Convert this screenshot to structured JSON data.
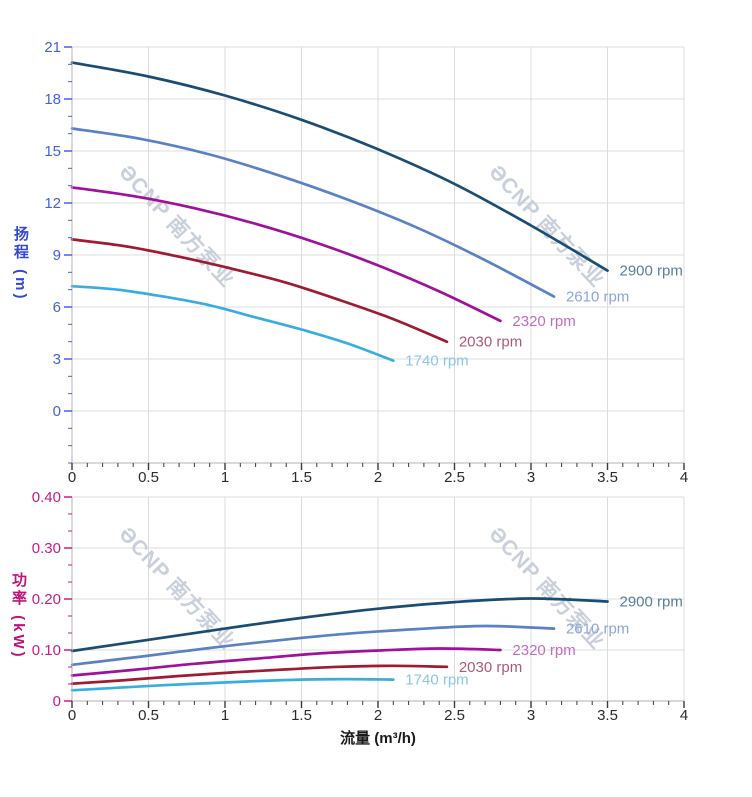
{
  "palette": {
    "grid_color": "#dcdcdf",
    "axis_line_color": "#b3b3b8",
    "x_tick_color": "#3a3a3a",
    "x_label_color": "#2b2b2b",
    "x_title_color": "#1a1a1a",
    "watermark_color": "#c9cfdb"
  },
  "watermark": {
    "text": "ƏCNP 南方泵业"
  },
  "flow_axis_title": "流量 (m³/h)",
  "chart_data": [
    {
      "type": "line",
      "name": "head-vs-flow",
      "title": "",
      "xlabel": "",
      "ylabel": "扬程 (m)",
      "xlim": [
        0,
        4
      ],
      "ylim": [
        -3,
        21
      ],
      "grid": true,
      "legend_position": "end-of-curve",
      "axis_color_y": "#4462de",
      "title_color": "#3448d2",
      "y_minor_per_major": 3,
      "x_minor_per_major": 5,
      "x_ticks": [
        {
          "value": 0,
          "label": "0"
        },
        {
          "value": 0.5,
          "label": "0.5"
        },
        {
          "value": 1,
          "label": "1"
        },
        {
          "value": 1.5,
          "label": "1.5"
        },
        {
          "value": 2,
          "label": "2"
        },
        {
          "value": 2.5,
          "label": "2.5"
        },
        {
          "value": 3,
          "label": "3"
        },
        {
          "value": 3.5,
          "label": "3.5"
        },
        {
          "value": 4,
          "label": "4"
        }
      ],
      "y_ticks": [
        {
          "value": 0,
          "label": "0"
        },
        {
          "value": 3,
          "label": "3"
        },
        {
          "value": 6,
          "label": "6"
        },
        {
          "value": 9,
          "label": "9"
        },
        {
          "value": 12,
          "label": "12"
        },
        {
          "value": 15,
          "label": "15"
        },
        {
          "value": 18,
          "label": "18"
        },
        {
          "value": 21,
          "label": "21"
        }
      ],
      "series": [
        {
          "name": "2900 rpm",
          "color": "#1b4d74",
          "label_color": "#587f9f",
          "points": [
            [
              0,
              20.1
            ],
            [
              0.5,
              19.3
            ],
            [
              1,
              18.2
            ],
            [
              1.5,
              16.8
            ],
            [
              2,
              15.1
            ],
            [
              2.5,
              13.1
            ],
            [
              3,
              10.7
            ],
            [
              3.5,
              8.1
            ]
          ]
        },
        {
          "name": "2610 rpm",
          "color": "#5a81c4",
          "label_color": "#8ba6d9",
          "points": [
            [
              0,
              16.3
            ],
            [
              0.45,
              15.7
            ],
            [
              0.9,
              14.8
            ],
            [
              1.35,
              13.6
            ],
            [
              1.8,
              12.2
            ],
            [
              2.25,
              10.6
            ],
            [
              2.7,
              8.7
            ],
            [
              3.15,
              6.6
            ]
          ]
        },
        {
          "name": "2320 rpm",
          "color": "#9e119b",
          "label_color": "#bf6ebe",
          "points": [
            [
              0,
              12.9
            ],
            [
              0.4,
              12.4
            ],
            [
              0.8,
              11.7
            ],
            [
              1.2,
              10.8
            ],
            [
              1.6,
              9.7
            ],
            [
              2,
              8.4
            ],
            [
              2.4,
              6.9
            ],
            [
              2.8,
              5.2
            ]
          ]
        },
        {
          "name": "2030 rpm",
          "color": "#9e1b33",
          "label_color": "#ad5a78",
          "points": [
            [
              0,
              9.9
            ],
            [
              0.35,
              9.5
            ],
            [
              0.7,
              8.9
            ],
            [
              1.05,
              8.2
            ],
            [
              1.4,
              7.4
            ],
            [
              1.75,
              6.4
            ],
            [
              2.1,
              5.3
            ],
            [
              2.45,
              4.0
            ]
          ]
        },
        {
          "name": "1740 rpm",
          "color": "#3aade0",
          "label_color": "#8ac5ea",
          "points": [
            [
              0,
              7.2
            ],
            [
              0.3,
              7.0
            ],
            [
              0.6,
              6.6
            ],
            [
              0.9,
              6.1
            ],
            [
              1.2,
              5.4
            ],
            [
              1.5,
              4.7
            ],
            [
              1.8,
              3.9
            ],
            [
              2.1,
              2.9
            ]
          ]
        }
      ]
    },
    {
      "type": "line",
      "name": "power-vs-flow",
      "title": "",
      "xlabel": "流量 (m³/h)",
      "ylabel": "功率 (kW)",
      "xlim": [
        0,
        4
      ],
      "ylim": [
        0,
        0.4
      ],
      "grid": true,
      "legend_position": "end-of-curve",
      "axis_color_y": "#c51d87",
      "title_color": "#bd1478",
      "y_minor_per_major": 3,
      "x_minor_per_major": 5,
      "x_ticks": [
        {
          "value": 0,
          "label": "0"
        },
        {
          "value": 0.5,
          "label": "0.5"
        },
        {
          "value": 1,
          "label": "1"
        },
        {
          "value": 1.5,
          "label": "1.5"
        },
        {
          "value": 2,
          "label": "2"
        },
        {
          "value": 2.5,
          "label": "2.5"
        },
        {
          "value": 3,
          "label": "3"
        },
        {
          "value": 3.5,
          "label": "3.5"
        },
        {
          "value": 4,
          "label": "4"
        }
      ],
      "y_ticks": [
        {
          "value": 0,
          "label": "0"
        },
        {
          "value": 0.1,
          "label": "0.10"
        },
        {
          "value": 0.2,
          "label": "0.20"
        },
        {
          "value": 0.3,
          "label": "0.30"
        },
        {
          "value": 0.4,
          "label": "0.40"
        }
      ],
      "series": [
        {
          "name": "2900 rpm",
          "color": "#1b4d74",
          "label_color": "#587f9f",
          "points": [
            [
              0,
              0.098
            ],
            [
              0.5,
              0.12
            ],
            [
              1,
              0.142
            ],
            [
              1.5,
              0.163
            ],
            [
              2,
              0.181
            ],
            [
              2.5,
              0.194
            ],
            [
              3,
              0.201
            ],
            [
              3.5,
              0.195
            ]
          ]
        },
        {
          "name": "2610 rpm",
          "color": "#5a81c4",
          "label_color": "#8ba6d9",
          "points": [
            [
              0,
              0.071
            ],
            [
              0.45,
              0.087
            ],
            [
              0.9,
              0.104
            ],
            [
              1.35,
              0.119
            ],
            [
              1.8,
              0.132
            ],
            [
              2.25,
              0.141
            ],
            [
              2.7,
              0.147
            ],
            [
              3.15,
              0.142
            ]
          ]
        },
        {
          "name": "2320 rpm",
          "color": "#9e119b",
          "label_color": "#bf6ebe",
          "points": [
            [
              0,
              0.05
            ],
            [
              0.4,
              0.061
            ],
            [
              0.8,
              0.073
            ],
            [
              1.2,
              0.083
            ],
            [
              1.6,
              0.093
            ],
            [
              2,
              0.099
            ],
            [
              2.4,
              0.103
            ],
            [
              2.8,
              0.1
            ]
          ]
        },
        {
          "name": "2030 rpm",
          "color": "#9e1b33",
          "label_color": "#ad5a78",
          "points": [
            [
              0,
              0.034
            ],
            [
              0.35,
              0.041
            ],
            [
              0.7,
              0.049
            ],
            [
              1.05,
              0.056
            ],
            [
              1.4,
              0.062
            ],
            [
              1.75,
              0.067
            ],
            [
              2.1,
              0.069
            ],
            [
              2.45,
              0.067
            ]
          ]
        },
        {
          "name": "1740 rpm",
          "color": "#3aade0",
          "label_color": "#8ac5ea",
          "points": [
            [
              0,
              0.021
            ],
            [
              0.3,
              0.026
            ],
            [
              0.6,
              0.031
            ],
            [
              0.9,
              0.035
            ],
            [
              1.2,
              0.039
            ],
            [
              1.5,
              0.042
            ],
            [
              1.8,
              0.043
            ],
            [
              2.1,
              0.042
            ]
          ]
        }
      ]
    }
  ]
}
